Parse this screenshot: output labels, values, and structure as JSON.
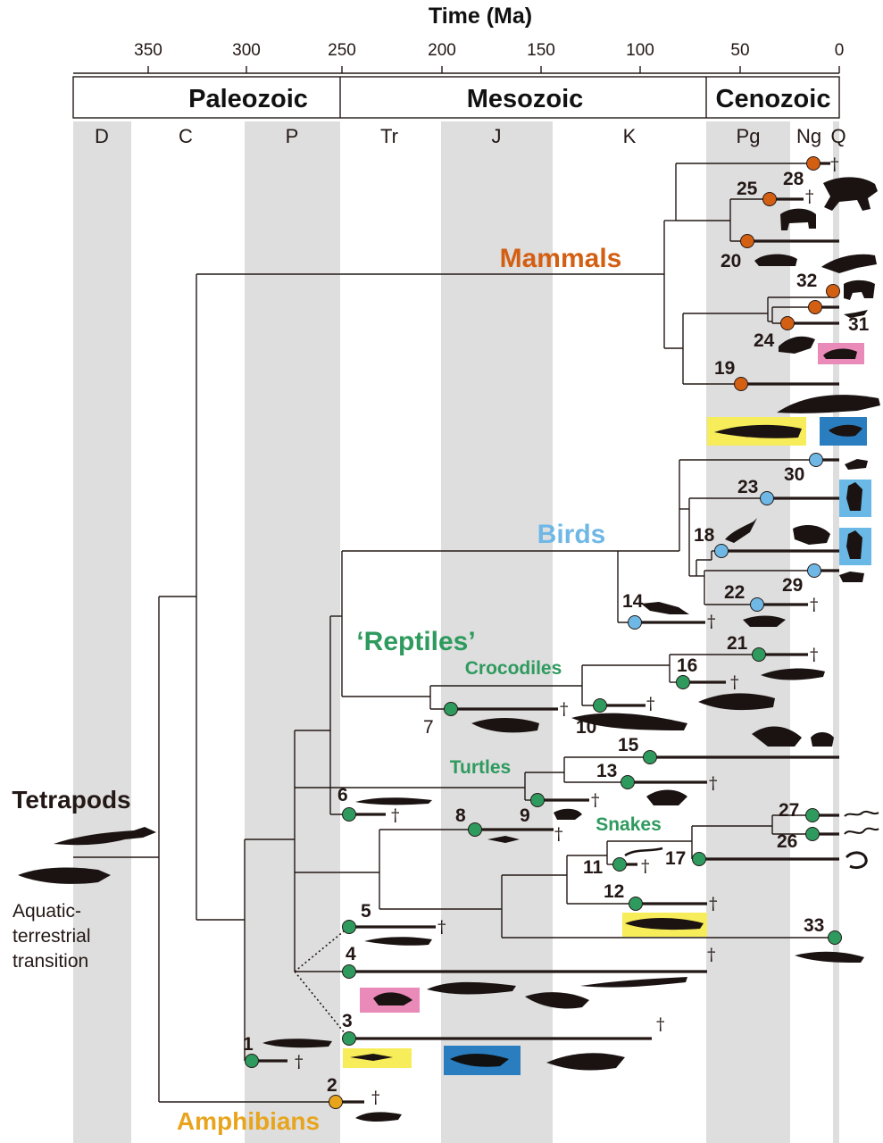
{
  "axis": {
    "title": "Time (Ma)",
    "ticks": [
      "350",
      "300",
      "250",
      "200",
      "150",
      "100",
      "50",
      "0"
    ]
  },
  "eras": [
    "Paleozoic",
    "Mesozoic",
    "Cenozoic"
  ],
  "periods": [
    "D",
    "C",
    "P",
    "Tr",
    "J",
    "K",
    "Pg",
    "Ng",
    "Q"
  ],
  "groups": {
    "mammals": "Mammals",
    "birds": "Birds",
    "reptiles": "‘Reptiles’",
    "crocodiles": "Crocodiles",
    "turtles": "Turtles",
    "snakes": "Snakes",
    "tetrapods": "Tetrapods",
    "amphibians": "Amphibians",
    "transition_line1": "Aquatic-",
    "transition_line2": "terrestrial",
    "transition_line3": "transition"
  },
  "nodes": [
    "1",
    "2",
    "3",
    "4",
    "5",
    "6",
    "7",
    "8",
    "9",
    "10",
    "11",
    "12",
    "13",
    "14",
    "15",
    "16",
    "17",
    "18",
    "19",
    "20",
    "21",
    "22",
    "23",
    "24",
    "25",
    "26",
    "27",
    "28",
    "29",
    "30",
    "31",
    "32",
    "33"
  ],
  "extinct_symbol": "†",
  "colors": {
    "mammal_node": "#d35f13",
    "bird_node": "#6fb8e6",
    "reptile_node": "#2e9a5e",
    "amphibian_node": "#e8a41c",
    "mammal_label": "#d35f13",
    "bird_label": "#6fb8e6",
    "reptile_label": "#2e9a5e",
    "amphibian_label": "#e8a41c",
    "period_band": "#dedede",
    "highlight_pink": "#e98ab8",
    "highlight_yellow": "#f7ec59",
    "highlight_darkblue": "#2a7ec0",
    "highlight_lightblue": "#6ab8e6"
  }
}
